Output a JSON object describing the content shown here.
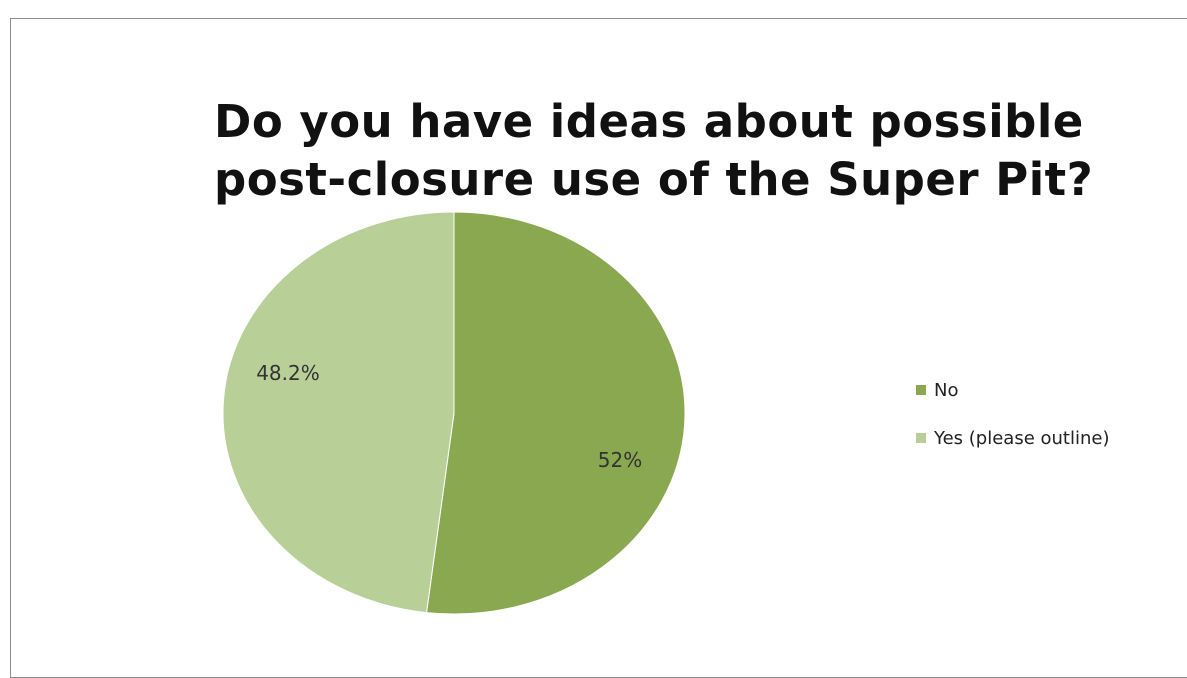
{
  "chart_data": {
    "type": "pie",
    "title": "Do you have ideas about possible post-closure use of the Super Pit?",
    "title_lines": [
      "Do you have ideas about possible",
      "post-closure use of the Super Pit?"
    ],
    "categories": [
      "No",
      "Yes (please outline)"
    ],
    "values": [
      52,
      48.2
    ],
    "labels": [
      "52%",
      "48.2%"
    ],
    "colors": [
      "#8aa84f",
      "#b8cf97"
    ],
    "legend_position": "right",
    "start_angle_deg": 0,
    "direction": "clockwise"
  }
}
